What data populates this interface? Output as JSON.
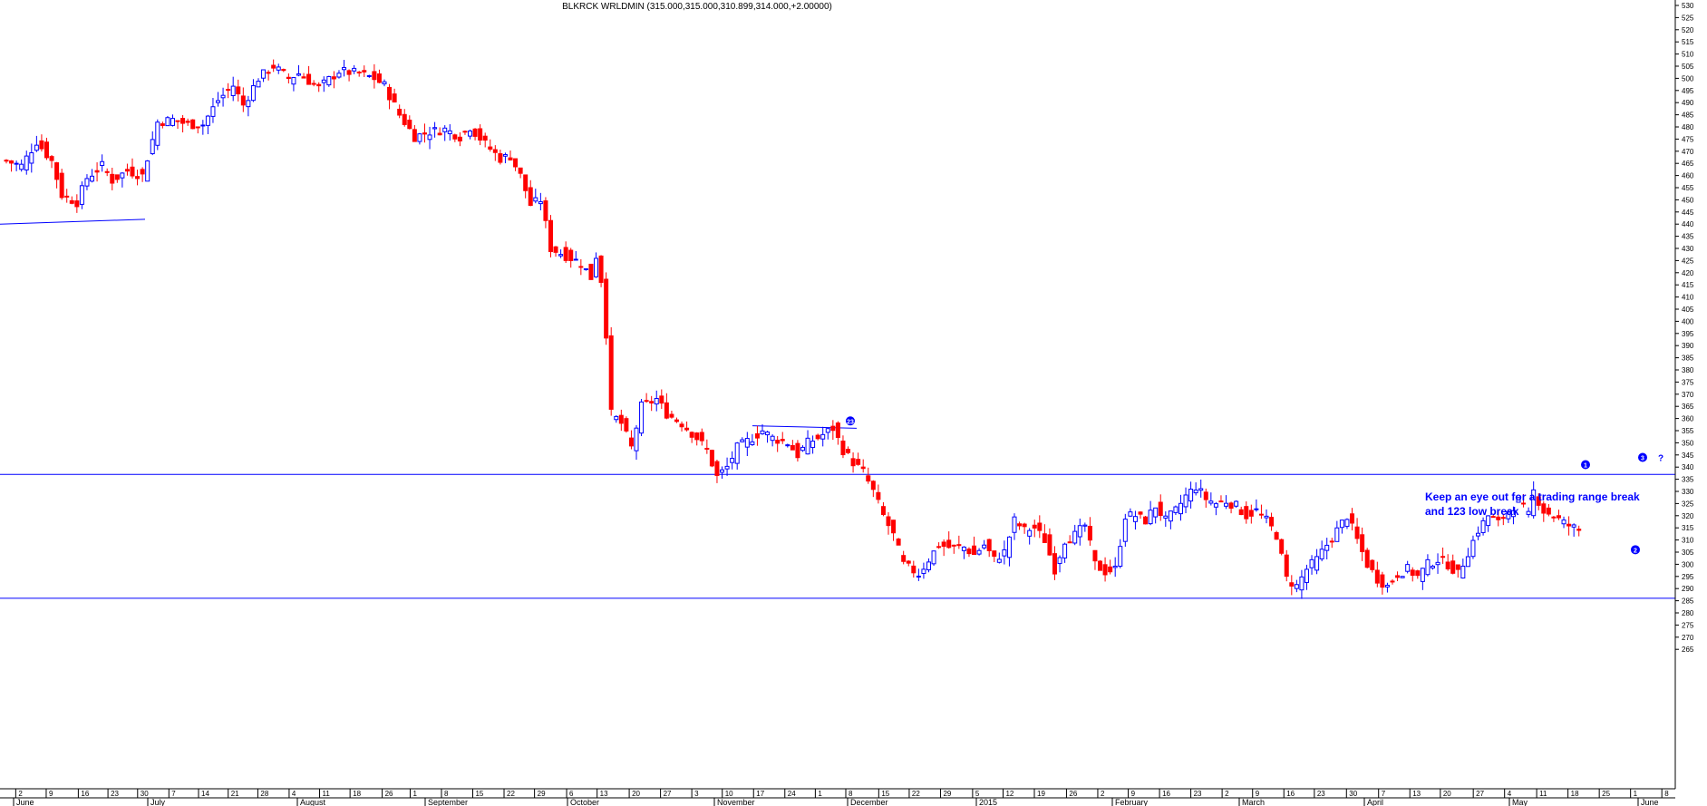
{
  "chart_data": {
    "type": "candlestick",
    "title": "BLKRCK WRLDMIN (315.000,315.000,310.899,314.000,+2.00000)",
    "ylim": [
      262,
      532
    ],
    "y_ticks": [
      265,
      270,
      275,
      280,
      285,
      290,
      295,
      300,
      305,
      310,
      315,
      320,
      325,
      330,
      335,
      340,
      345,
      350,
      355,
      360,
      365,
      370,
      375,
      380,
      385,
      390,
      395,
      400,
      405,
      410,
      415,
      420,
      425,
      430,
      435,
      440,
      445,
      450,
      455,
      460,
      465,
      470,
      475,
      480,
      485,
      490,
      495,
      500,
      505,
      510,
      515,
      520,
      525,
      530
    ],
    "x_day_labels": [
      "2",
      "9",
      "16",
      "23",
      "30",
      "7",
      "14",
      "21",
      "28",
      "4",
      "11",
      "18",
      "26",
      "1",
      "8",
      "15",
      "22",
      "29",
      "6",
      "13",
      "20",
      "27",
      "3",
      "10",
      "17",
      "24",
      "1",
      "8",
      "15",
      "22",
      "29",
      "5",
      "12",
      "19",
      "26",
      "2",
      "9",
      "16",
      "23",
      "2",
      "9",
      "16",
      "23",
      "30",
      "7",
      "13",
      "20",
      "27",
      "4",
      "11",
      "18",
      "25",
      "1",
      "8"
    ],
    "x_month_labels": [
      "June",
      "July",
      "August",
      "September",
      "October",
      "November",
      "December",
      "2015",
      "February",
      "March",
      "April",
      "May",
      "June"
    ],
    "horizontal_levels": [
      337,
      286
    ],
    "up_color": "#0000ff",
    "down_color": "#ff0000",
    "line_color": "#0000ff",
    "annotation_lines": [
      "Keep an eye out for a trading range break",
      "and 123 low break"
    ],
    "markers": [
      {
        "label": "1",
        "y": 341
      },
      {
        "label": "2",
        "y": 306
      },
      {
        "label": "3",
        "y": 344
      },
      {
        "label": "?",
        "y": 344
      },
      {
        "label": "23",
        "y": 359
      }
    ],
    "pivots": [
      [
        0,
        466
      ],
      [
        3,
        464
      ],
      [
        6,
        474
      ],
      [
        9,
        466
      ],
      [
        11,
        452
      ],
      [
        14,
        449
      ],
      [
        16,
        459
      ],
      [
        19,
        464
      ],
      [
        21,
        458
      ],
      [
        24,
        462
      ],
      [
        27,
        460
      ],
      [
        30,
        482
      ],
      [
        33,
        483
      ],
      [
        36,
        481
      ],
      [
        39,
        481
      ],
      [
        42,
        491
      ],
      [
        45,
        497
      ],
      [
        47,
        489
      ],
      [
        50,
        500
      ],
      [
        53,
        505
      ],
      [
        56,
        500
      ],
      [
        58,
        502
      ],
      [
        62,
        496
      ],
      [
        66,
        503
      ],
      [
        70,
        502
      ],
      [
        73,
        500
      ],
      [
        75,
        497
      ],
      [
        78,
        485
      ],
      [
        81,
        476
      ],
      [
        84,
        478
      ],
      [
        87,
        479
      ],
      [
        90,
        476
      ],
      [
        92,
        480
      ],
      [
        95,
        473
      ],
      [
        98,
        467
      ],
      [
        100,
        468
      ],
      [
        102,
        460
      ],
      [
        104,
        448
      ],
      [
        106,
        450
      ],
      [
        108,
        430
      ],
      [
        110,
        428
      ],
      [
        112,
        426
      ],
      [
        114,
        424
      ],
      [
        116,
        418
      ],
      [
        117,
        427
      ],
      [
        118,
        417
      ],
      [
        119,
        395
      ],
      [
        120,
        362
      ],
      [
        122,
        358
      ],
      [
        124,
        348
      ],
      [
        126,
        365
      ],
      [
        129,
        368
      ],
      [
        131,
        362
      ],
      [
        134,
        358
      ],
      [
        137,
        352
      ],
      [
        139,
        347
      ],
      [
        141,
        336
      ],
      [
        143,
        340
      ],
      [
        145,
        348
      ],
      [
        148,
        352
      ],
      [
        150,
        355
      ],
      [
        152,
        352
      ],
      [
        155,
        350
      ],
      [
        157,
        345
      ],
      [
        159,
        350
      ],
      [
        161,
        352
      ],
      [
        164,
        356
      ],
      [
        166,
        347
      ],
      [
        168,
        342
      ],
      [
        170,
        338
      ],
      [
        172,
        330
      ],
      [
        174,
        320
      ],
      [
        176,
        312
      ],
      [
        178,
        300
      ],
      [
        181,
        296
      ],
      [
        183,
        302
      ],
      [
        185,
        308
      ],
      [
        187,
        307
      ],
      [
        190,
        307
      ],
      [
        192,
        304
      ],
      [
        194,
        308
      ],
      [
        196,
        302
      ],
      [
        198,
        305
      ],
      [
        200,
        318
      ],
      [
        202,
        314
      ],
      [
        204,
        315
      ],
      [
        206,
        310
      ],
      [
        208,
        298
      ],
      [
        210,
        310
      ],
      [
        212,
        312
      ],
      [
        214,
        316
      ],
      [
        216,
        300
      ],
      [
        218,
        297
      ],
      [
        220,
        298
      ],
      [
        222,
        320
      ],
      [
        224,
        320
      ],
      [
        226,
        318
      ],
      [
        228,
        324
      ],
      [
        230,
        318
      ],
      [
        232,
        322
      ],
      [
        234,
        328
      ],
      [
        236,
        332
      ],
      [
        238,
        327
      ],
      [
        240,
        325
      ],
      [
        242,
        326
      ],
      [
        244,
        324
      ],
      [
        246,
        320
      ],
      [
        248,
        322
      ],
      [
        250,
        318
      ],
      [
        252,
        312
      ],
      [
        254,
        294
      ],
      [
        256,
        291
      ],
      [
        258,
        298
      ],
      [
        260,
        302
      ],
      [
        262,
        308
      ],
      [
        264,
        314
      ],
      [
        266,
        320
      ],
      [
        268,
        310
      ],
      [
        270,
        300
      ],
      [
        272,
        294
      ],
      [
        274,
        291
      ],
      [
        276,
        296
      ],
      [
        278,
        298
      ],
      [
        280,
        295
      ],
      [
        282,
        300
      ],
      [
        284,
        302
      ],
      [
        286,
        300
      ],
      [
        288,
        296
      ],
      [
        290,
        305
      ],
      [
        292,
        314
      ],
      [
        294,
        320
      ],
      [
        296,
        317
      ],
      [
        298,
        322
      ],
      [
        300,
        326
      ],
      [
        302,
        320
      ],
      [
        303,
        330
      ],
      [
        305,
        322
      ],
      [
        307,
        320
      ],
      [
        309,
        317
      ],
      [
        311,
        315
      ],
      [
        312,
        314
      ]
    ]
  }
}
